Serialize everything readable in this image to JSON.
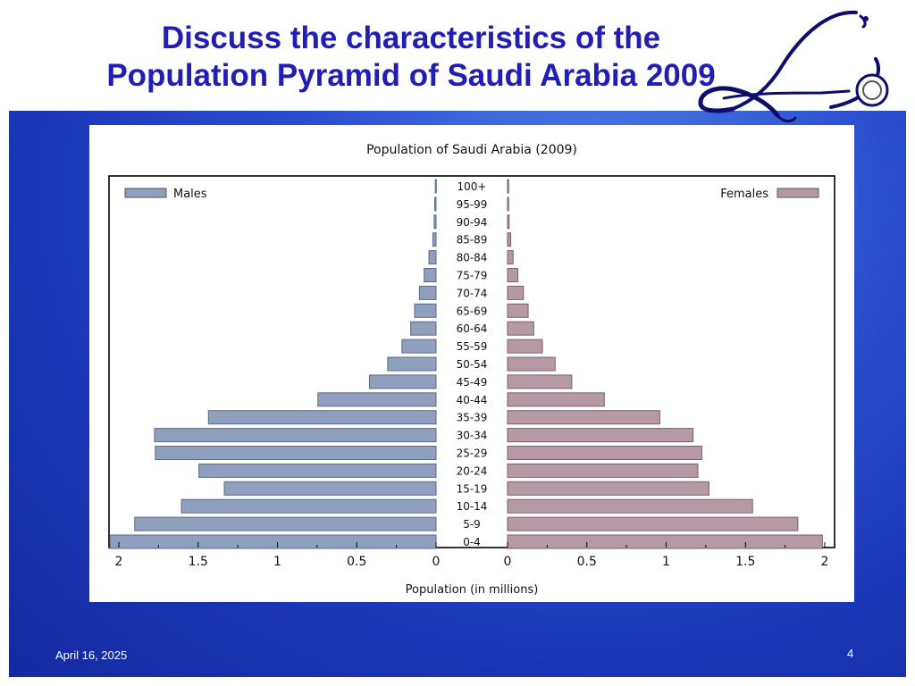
{
  "slide": {
    "title_line1": "Discuss the characteristics of the",
    "title_line2": "Population Pyramid of Saudi Arabia 2009",
    "date": "April 16, 2025",
    "page_number": "4"
  },
  "colors": {
    "title": "#1f1fb8",
    "panel": "#2a4fcf",
    "males": "#8ea0bd",
    "females": "#b59aa5"
  },
  "chart_data": {
    "type": "bar",
    "orientation": "horizontal-pyramid",
    "title": "Population of Saudi Arabia (2009)",
    "xlabel": "Population (in millions)",
    "ylabel": "",
    "xlim": [
      0,
      2
    ],
    "ticks": [
      "0",
      "0.5",
      "1",
      "1.5",
      "2"
    ],
    "legend_position": "top",
    "categories": [
      "100+",
      "95-99",
      "90-94",
      "85-89",
      "80-84",
      "75-79",
      "70-74",
      "65-69",
      "60-64",
      "55-59",
      "50-54",
      "45-49",
      "40-44",
      "35-39",
      "30-34",
      "25-29",
      "20-24",
      "15-19",
      "10-14",
      "5-9",
      "0-4"
    ],
    "series": [
      {
        "name": "Males",
        "side": "left",
        "values": [
          0.005,
          0.008,
          0.012,
          0.02,
          0.045,
          0.075,
          0.105,
          0.135,
          0.16,
          0.215,
          0.305,
          0.42,
          0.745,
          1.435,
          1.775,
          1.77,
          1.495,
          1.335,
          1.605,
          1.9,
          2.07
        ]
      },
      {
        "name": "Females",
        "side": "right",
        "values": [
          0.004,
          0.007,
          0.01,
          0.02,
          0.035,
          0.065,
          0.1,
          0.13,
          0.165,
          0.22,
          0.3,
          0.405,
          0.61,
          0.96,
          1.17,
          1.225,
          1.2,
          1.27,
          1.545,
          1.83,
          1.985
        ]
      }
    ]
  }
}
